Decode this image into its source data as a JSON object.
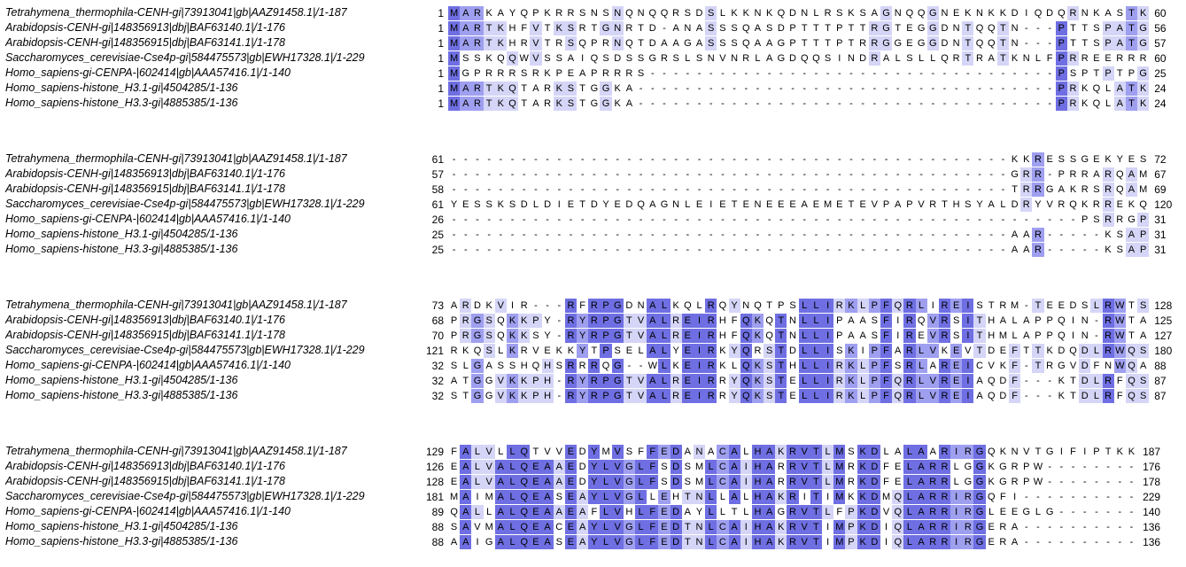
{
  "view": {
    "title": "multiple-sequence-alignment",
    "color_scheme": "percentage-identity",
    "colors": {
      "high": "#6F6FE3",
      "mid": "#9F9FF0",
      "low": "#D5D5F7",
      "background": "#FFFFFF",
      "text": "#000000"
    },
    "thresholds": {
      "high": 80,
      "mid": 60,
      "low": 40
    }
  },
  "alignment": {
    "sequences": [
      {
        "label": "Tetrahymena_thermophila-CENH-gi|73913041|gb|AAZ91458.1|/1-187"
      },
      {
        "label": "Arabidopsis-CENH-gi|148356913|dbj|BAF63140.1|/1-176"
      },
      {
        "label": "Arabidopsis-CENH-gi|148356915|dbj|BAF63141.1|/1-178"
      },
      {
        "label": "Saccharomyces_cerevisiae-Cse4p-gi|584475573|gb|EWH17328.1|/1-229"
      },
      {
        "label": "Homo_sapiens-gi-CENPA-|602414|gb|AAA57416.1|/1-140"
      },
      {
        "label": "Homo_sapiens-histone_H3.1-gi|4504285/1-136"
      },
      {
        "label": "Homo_sapiens-histone_H3.3-gi|4885385/1-136"
      }
    ],
    "blocks": [
      {
        "starts": [
          1,
          1,
          1,
          1,
          1,
          1,
          1
        ],
        "ends": [
          60,
          56,
          57,
          60,
          25,
          24,
          24
        ],
        "rows": [
          "MARKAYQPKRRSNSNQNQQRSDSLKKNKQDNLRSKSAGNQQGNEKNKKDIQDQRNKASTK",
          "MARTKHFVTKSRTGNRTD-ANASSSQASDPTTTPTTRGTEGGDNTQQTN---PTTSPATG",
          "MARTKHRVTRSQPRNQTDAAGASSSQAAGPTTTPTRRGGEGGDNTQQTN---PTTSPATG",
          "MSSKQQWVSSAIQSDSSGRSLSNVNRLAGDQQSINDRALSLLQRTRATKNLFPRREERRR",
          "MGPRRRSRKPEAPRRRS-----------------------------------PSPTPTPG",
          "MARTKQTARKSTGGKA------------------------------------PRKQLATK",
          "MARTKQTARKSTGGKA------------------------------------PRKQLATK"
        ]
      },
      {
        "starts": [
          61,
          57,
          58,
          61,
          26,
          25,
          25
        ],
        "ends": [
          72,
          67,
          69,
          120,
          31,
          31,
          31
        ],
        "rows": [
          "------------------------------------------------KKRESSGEKYES",
          "------------------------------------------------GRR-PRRARQAM",
          "------------------------------------------------TRRGAKRSRQAM",
          "YESSKSDLDIETDYEDQAGNLEIETENEEEAEMETEVPAPVRTHSYALDRYVRQKRREKQ",
          "------------------------------------------------------PSRRGP",
          "------------------------------------------------AAR-----KSAP",
          "------------------------------------------------AAR-----KSAP"
        ]
      },
      {
        "starts": [
          73,
          68,
          70,
          121,
          32,
          32,
          32
        ],
        "ends": [
          128,
          125,
          127,
          180,
          88,
          87,
          87
        ],
        "rows": [
          "ARDKVIR---RFRPGDNALKQLRQYNQTPSLLIRKLPFQRLIREISTRM-TEEDSLRWTS",
          "PRGSQKKPY-RYRPGTVALREIRHFQKQTNLLIPAASFIRQVRSITHALAPPQIN-RWTA",
          "PRGSQKKSY-RYRPGTVALREIRHFQKQTNLLIPAASFIREVRSITHMLAPPQIN-RWTA",
          "RKQSLKRVEKKYTPSELALYEIRKYQRSTDLLISKIPFARLVKEVTDEFTTKDQDLRWQS",
          "SLGASSHQHSRRRQG--WLKEIRKLQKSTHLLIRKLPFSRLAREICVKF-TRGVDFNWQA",
          "ATGGVKKPH-RYRPGTVALREIRRYQKSTELLIRKLPFQRLVREIAQDF---KTDLRFQS",
          "STGGVKKPH-RYRPGTVALREIRRYQKSTELLIRKLPFQRLVREIAQDF---KTDLRFQS"
        ]
      },
      {
        "starts": [
          129,
          126,
          128,
          181,
          89,
          88,
          88
        ],
        "ends": [
          187,
          176,
          178,
          229,
          140,
          136,
          136
        ],
        "rows": [
          "FALVLLQTVVEDYMVSFFEDANACALHAKRVTLMSKDLALAARIRGQKNVTGIFIPTKK",
          "EALVALQEAAEDYLVGLFSDSMLCAIHARRVTLMRKDFELARRLGGKGRPW--------",
          "EALVALQEAAEDYLVGLFSDSMLCAIHARRVTLMRKDFELARRLGGKGRPW--------",
          "MAIMALQEASEAYLVGLLEHTNLLALHAKRITIMKKDMQLARRIRGQFI----------",
          "QALLALQEAAEAFLVHLFEDAYLLTLHAGRVTLFPKDVQLARRIRGLEEGLG-------",
          "SAVMALQEACEAYLVGLFEDTNLCAIHAKRVTIMPKDIQLARRIRGERA----------",
          "AAIGALQEASEAYLVGLFEDTNLCAIHAKRVTIMPKDIQLARRIRGERA----------"
        ]
      }
    ]
  }
}
